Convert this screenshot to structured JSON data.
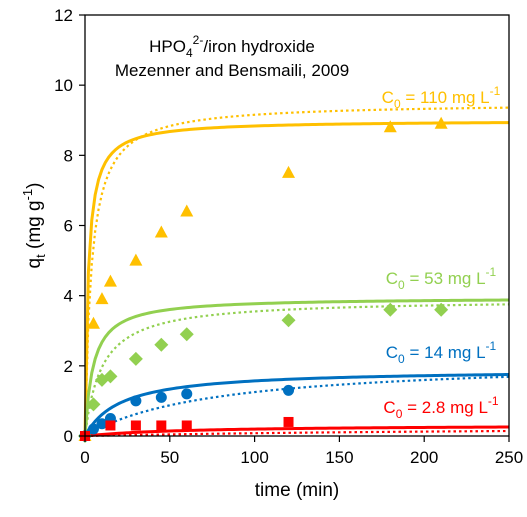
{
  "chart_data": {
    "type": "scatter",
    "xlabel": "time (min)",
    "ylabel": {
      "main": "q",
      "sub": "t",
      "unit_pre": " (mg g",
      "unit_sup": "-1",
      "unit_post": ")"
    },
    "xlim": [
      0,
      250
    ],
    "ylim": [
      0,
      12
    ],
    "xticks": [
      0,
      50,
      100,
      150,
      200,
      250
    ],
    "yticks": [
      0,
      2,
      4,
      6,
      8,
      10,
      12
    ],
    "grid": false,
    "annotation": {
      "line1": {
        "pre": "HPO",
        "sub": "4",
        "sup": "2-",
        "post": "/iron hydroxide"
      },
      "line2": "Mezenner and Bensmaili, 2009"
    },
    "series": [
      {
        "label": {
          "pre": "C",
          "sub": "0",
          "mid": " = 110 mg L",
          "sup": "-1"
        },
        "color": "#ffc000",
        "marker": "triangle",
        "x": [
          0,
          5,
          10,
          15,
          30,
          45,
          60,
          120,
          180,
          210
        ],
        "y": [
          0,
          3.2,
          3.9,
          4.4,
          5.0,
          5.8,
          6.4,
          7.5,
          8.8,
          8.9
        ],
        "fit_solid": {
          "qe": 9.0,
          "k": 0.06
        },
        "fit_dotted": {
          "qe": 9.5,
          "k": 0.028
        }
      },
      {
        "label": {
          "pre": "C",
          "sub": "0",
          "mid": " = 53 mg L",
          "sup": "-1"
        },
        "color": "#92d050",
        "marker": "diamond",
        "x": [
          0,
          5,
          10,
          15,
          30,
          45,
          60,
          120,
          180,
          210
        ],
        "y": [
          0,
          0.9,
          1.6,
          1.7,
          2.2,
          2.6,
          2.9,
          3.3,
          3.6,
          3.6
        ],
        "fit_solid": {
          "qe": 3.95,
          "k": 0.053
        },
        "fit_dotted": {
          "qe": 3.9,
          "k": 0.026
        }
      },
      {
        "label": {
          "pre": "C",
          "sub": "0",
          "mid": " = 14 mg L",
          "sup": "-1"
        },
        "color": "#0070c0",
        "marker": "circle",
        "x": [
          0,
          5,
          10,
          15,
          30,
          45,
          60,
          120
        ],
        "y": [
          0,
          0.2,
          0.35,
          0.5,
          1.0,
          1.1,
          1.2,
          1.3
        ],
        "fit_solid": {
          "qe": 1.9,
          "k": 0.025
        },
        "fit_dotted": {
          "qe": 2.2,
          "k": 0.006
        }
      },
      {
        "label": {
          "pre": "C",
          "sub": "0",
          "mid": " = 2.8 mg L",
          "sup": "-1"
        },
        "color": "#ff0000",
        "marker": "square",
        "x": [
          0,
          15,
          30,
          45,
          60,
          120
        ],
        "y": [
          0,
          0.3,
          0.3,
          0.3,
          0.3,
          0.4
        ],
        "fit_solid": {
          "qe": 0.32,
          "k": 0.05
        },
        "fit_dotted": {
          "qe": 0.3,
          "k": 0.012
        }
      }
    ]
  }
}
